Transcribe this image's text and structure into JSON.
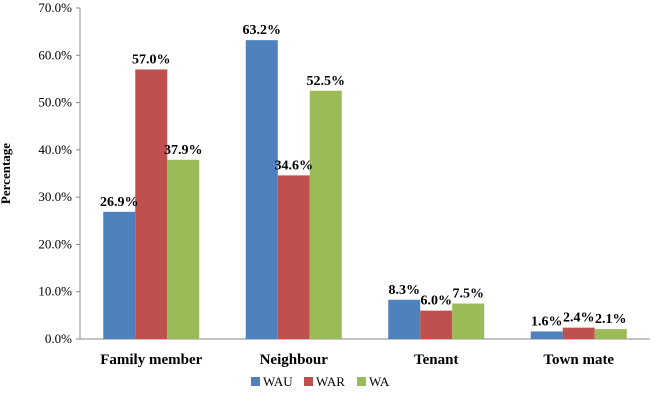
{
  "chart_data": {
    "type": "bar",
    "title": "",
    "xlabel": "",
    "ylabel": "Percentage",
    "ylim": [
      0,
      70
    ],
    "ytick_step": 10,
    "ytick_format": "0.0%",
    "grid": false,
    "legend_position": "bottom",
    "categories": [
      "Family member",
      "Neighbour",
      "Tenant",
      "Town mate"
    ],
    "series": [
      {
        "name": "WAU",
        "color": "#4F81BD",
        "values": [
          26.9,
          63.2,
          8.3,
          1.6
        ],
        "labels": [
          "26.9%",
          "63.2%",
          "8.3%",
          "1.6%"
        ]
      },
      {
        "name": "WAR",
        "color": "#C0504D",
        "values": [
          57.0,
          34.6,
          6.0,
          2.4
        ],
        "labels": [
          "57.0%",
          "34.6%",
          "6.0%",
          "2.4%"
        ]
      },
      {
        "name": "WA",
        "color": "#9BBB59",
        "values": [
          37.9,
          52.5,
          7.5,
          2.1
        ],
        "labels": [
          "37.9%",
          "52.5%",
          "7.5%",
          "2.1%"
        ]
      }
    ]
  }
}
